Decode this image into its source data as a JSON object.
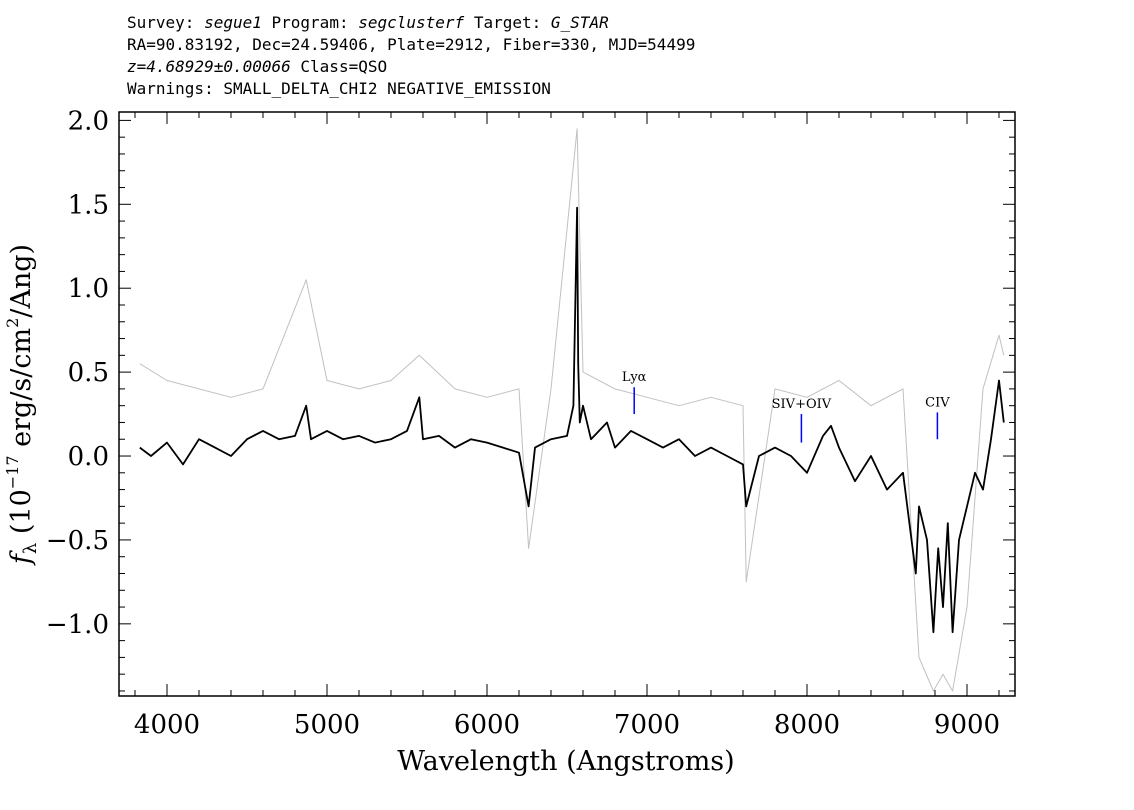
{
  "header": {
    "line1": {
      "survey_label": "Survey:",
      "survey_value": "segue1",
      "program_label": "Program:",
      "program_value": "segclusterf",
      "target_label": "Target:",
      "target_value": "G_STAR"
    },
    "line2": "RA=90.83192, Dec=24.59406, Plate=2912, Fiber=330, MJD=54499",
    "line3": {
      "redshift": "z=4.68929±0.00066",
      "class": "Class=QSO"
    },
    "line4": "Warnings: SMALL_DELTA_CHI2 NEGATIVE_EMISSION"
  },
  "chart_data": {
    "type": "line",
    "xlabel": "Wavelength (Angstroms)",
    "ylabel": "f_λ (10^-17 erg/s/cm²/Ang)",
    "xlim": [
      3700,
      9300
    ],
    "ylim": [
      -1.43,
      2.05
    ],
    "x_ticks": [
      4000,
      5000,
      6000,
      7000,
      8000,
      9000
    ],
    "x_tick_labels": [
      "4000",
      "5000",
      "6000",
      "7000",
      "8000",
      "9000"
    ],
    "y_ticks": [
      -1.0,
      -0.5,
      0.0,
      0.5,
      1.0,
      1.5,
      2.0
    ],
    "y_tick_labels": [
      "−1.0",
      "−0.5",
      "0.0",
      "0.5",
      "1.0",
      "1.5",
      "2.0"
    ],
    "grid": false,
    "series": [
      {
        "role": "flux",
        "color": "#000000",
        "x": [
          3830,
          3900,
          4000,
          4100,
          4200,
          4300,
          4400,
          4500,
          4600,
          4700,
          4800,
          4870,
          4900,
          5000,
          5100,
          5200,
          5300,
          5400,
          5500,
          5577,
          5600,
          5700,
          5800,
          5900,
          6000,
          6100,
          6200,
          6260,
          6300,
          6400,
          6500,
          6540,
          6563,
          6570,
          6580,
          6600,
          6650,
          6700,
          6750,
          6800,
          6900,
          7000,
          7100,
          7200,
          7300,
          7400,
          7500,
          7600,
          7620,
          7700,
          7800,
          7900,
          8000,
          8100,
          8150,
          8200,
          8300,
          8400,
          8500,
          8600,
          8680,
          8700,
          8750,
          8790,
          8820,
          8850,
          8880,
          8910,
          8950,
          9000,
          9050,
          9100,
          9150,
          9200,
          9230
        ],
        "y": [
          0.05,
          0.0,
          0.08,
          -0.05,
          0.1,
          0.05,
          0.0,
          0.1,
          0.15,
          0.1,
          0.12,
          0.3,
          0.1,
          0.15,
          0.1,
          0.12,
          0.08,
          0.1,
          0.15,
          0.35,
          0.1,
          0.12,
          0.05,
          0.1,
          0.08,
          0.05,
          0.02,
          -0.3,
          0.05,
          0.1,
          0.12,
          0.3,
          1.48,
          0.55,
          0.2,
          0.3,
          0.1,
          0.15,
          0.2,
          0.05,
          0.15,
          0.1,
          0.05,
          0.1,
          0.0,
          0.05,
          0.0,
          -0.05,
          -0.3,
          0.0,
          0.05,
          0.0,
          -0.1,
          0.12,
          0.18,
          0.05,
          -0.15,
          0.0,
          -0.2,
          -0.1,
          -0.7,
          -0.3,
          -0.5,
          -1.05,
          -0.55,
          -0.9,
          -0.4,
          -1.05,
          -0.5,
          -0.3,
          -0.1,
          -0.2,
          0.1,
          0.45,
          0.2
        ]
      },
      {
        "role": "error",
        "color": "#c0c0c0",
        "x": [
          3830,
          4000,
          4200,
          4400,
          4600,
          4870,
          5000,
          5200,
          5400,
          5577,
          5800,
          6000,
          6200,
          6260,
          6400,
          6563,
          6600,
          6800,
          7000,
          7200,
          7400,
          7600,
          7620,
          7800,
          8000,
          8200,
          8400,
          8600,
          8700,
          8790,
          8850,
          8910,
          9000,
          9100,
          9200,
          9230
        ],
        "y": [
          0.55,
          0.45,
          0.4,
          0.35,
          0.4,
          1.05,
          0.45,
          0.4,
          0.45,
          0.6,
          0.4,
          0.35,
          0.4,
          -0.55,
          0.4,
          1.95,
          0.5,
          0.4,
          0.35,
          0.3,
          0.35,
          0.3,
          -0.75,
          0.4,
          0.35,
          0.45,
          0.3,
          0.4,
          -1.2,
          -1.4,
          -1.3,
          -1.4,
          -0.9,
          0.4,
          0.72,
          0.6
        ]
      }
    ],
    "annotations": [
      {
        "label": "Lyα",
        "x": 6920,
        "y_low": 0.25,
        "y_high": 0.41,
        "color": "#0000ff"
      },
      {
        "label": "SIV+OIV",
        "x": 7965,
        "y_low": 0.08,
        "y_high": 0.25,
        "color": "#0000ff"
      },
      {
        "label": "CIV",
        "x": 8815,
        "y_low": 0.1,
        "y_high": 0.26,
        "color": "#0000ff"
      }
    ]
  }
}
